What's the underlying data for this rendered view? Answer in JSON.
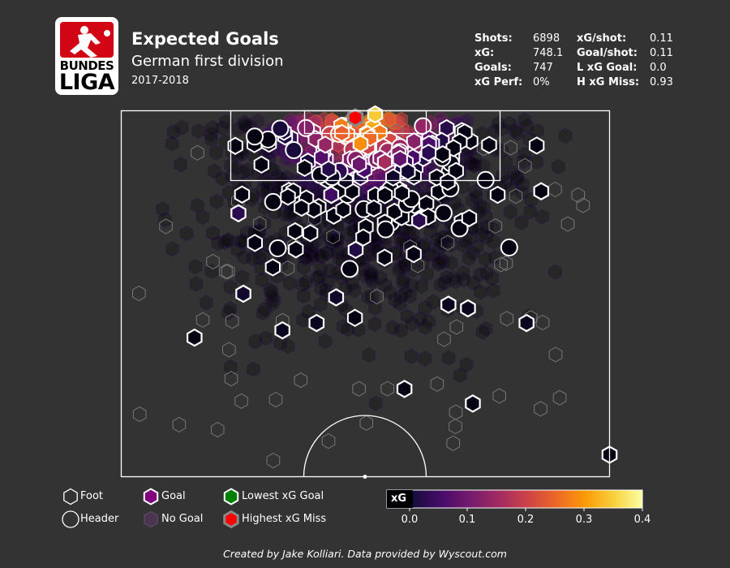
{
  "header": {
    "logo": {
      "line1": "BUNDES",
      "line2": "LIGA"
    },
    "title": "Expected Goals",
    "subtitle": "German first division",
    "season": "2017-2018"
  },
  "stats": [
    {
      "label": "Shots:",
      "value": "6898"
    },
    {
      "label": "xG:",
      "value": "748.1"
    },
    {
      "label": "Goals:",
      "value": "747"
    },
    {
      "label": "xG Perf:",
      "value": "0%"
    },
    {
      "label": "xG/shot:",
      "value": "0.11"
    },
    {
      "label": "Goal/shot:",
      "value": "0.11"
    },
    {
      "label": "L xG Goal:",
      "value": "0.0"
    },
    {
      "label": "H xG Miss:",
      "value": "0.93"
    }
  ],
  "legend": {
    "foot": "Foot",
    "header": "Header",
    "goal": "Goal",
    "no_goal": "No Goal",
    "lowest": "Lowest xG Goal",
    "highest": "Highest xG Miss"
  },
  "colorbar": {
    "title": "xG",
    "ticks": [
      "0.0",
      "0.1",
      "0.2",
      "0.3",
      "0.4"
    ],
    "min": 0,
    "max": 0.4
  },
  "credit": "Created by Jake Kolliari. Data provided by Wyscout.com",
  "colors": {
    "background": "#333333",
    "pitch_lines": "#ffffff",
    "goal_marker_fill": "#800080",
    "lowest_xg_goal": "#008000",
    "highest_xg_miss": "#ff0000",
    "colormap": [
      "#000004",
      "#1b0c41",
      "#4a0c6b",
      "#781c6d",
      "#a52c60",
      "#cf4446",
      "#ed6925",
      "#fb9b06",
      "#f7d13d",
      "#fcffa4"
    ]
  },
  "chart_data": {
    "type": "scatter",
    "encoding": "hexagonal shot map, color = xG",
    "total_shots": 6898,
    "highlighted_goals": [
      {
        "x_rel": 0.86,
        "y_rel": 0.22,
        "xg": 0.01
      },
      {
        "x_rel": 0.33,
        "y_rel": 0.6,
        "xg": 0.02
      },
      {
        "x_rel": 0.15,
        "y_rel": 0.62,
        "xg": 0.01
      },
      {
        "x_rel": 0.58,
        "y_rel": 0.76,
        "xg": 0.01
      },
      {
        "x_rel": 0.72,
        "y_rel": 0.8,
        "xg": 0.01
      },
      {
        "x_rel": 1.0,
        "y_rel": 0.94,
        "xg": 0.01
      },
      {
        "x_rel": 0.83,
        "y_rel": 0.58,
        "xg": 0.02
      },
      {
        "x_rel": 0.67,
        "y_rel": 0.53,
        "xg": 0.02
      },
      {
        "x_rel": 0.44,
        "y_rel": 0.51,
        "xg": 0.03
      },
      {
        "x_rel": 0.25,
        "y_rel": 0.5,
        "xg": 0.03
      },
      {
        "x_rel": 0.4,
        "y_rel": 0.58,
        "xg": 0.02
      },
      {
        "x_rel": 0.71,
        "y_rel": 0.54,
        "xg": 0.02
      },
      {
        "x_rel": 0.48,
        "y_rel": 0.38,
        "xg": 0.05
      },
      {
        "x_rel": 0.61,
        "y_rel": 0.3,
        "xg": 0.06
      },
      {
        "x_rel": 0.24,
        "y_rel": 0.28,
        "xg": 0.06
      },
      {
        "x_rel": 0.43,
        "y_rel": 0.23,
        "xg": 0.08
      },
      {
        "x_rel": 0.54,
        "y_rel": 0.14,
        "xg": 0.18
      },
      {
        "x_rel": 0.49,
        "y_rel": 0.09,
        "xg": 0.3
      },
      {
        "x_rel": 0.52,
        "y_rel": 0.01,
        "xg": 0.35
      }
    ],
    "lowest_xg_goal": {
      "xg": 0.0
    },
    "highest_xg_miss": {
      "xg": 0.93
    }
  }
}
